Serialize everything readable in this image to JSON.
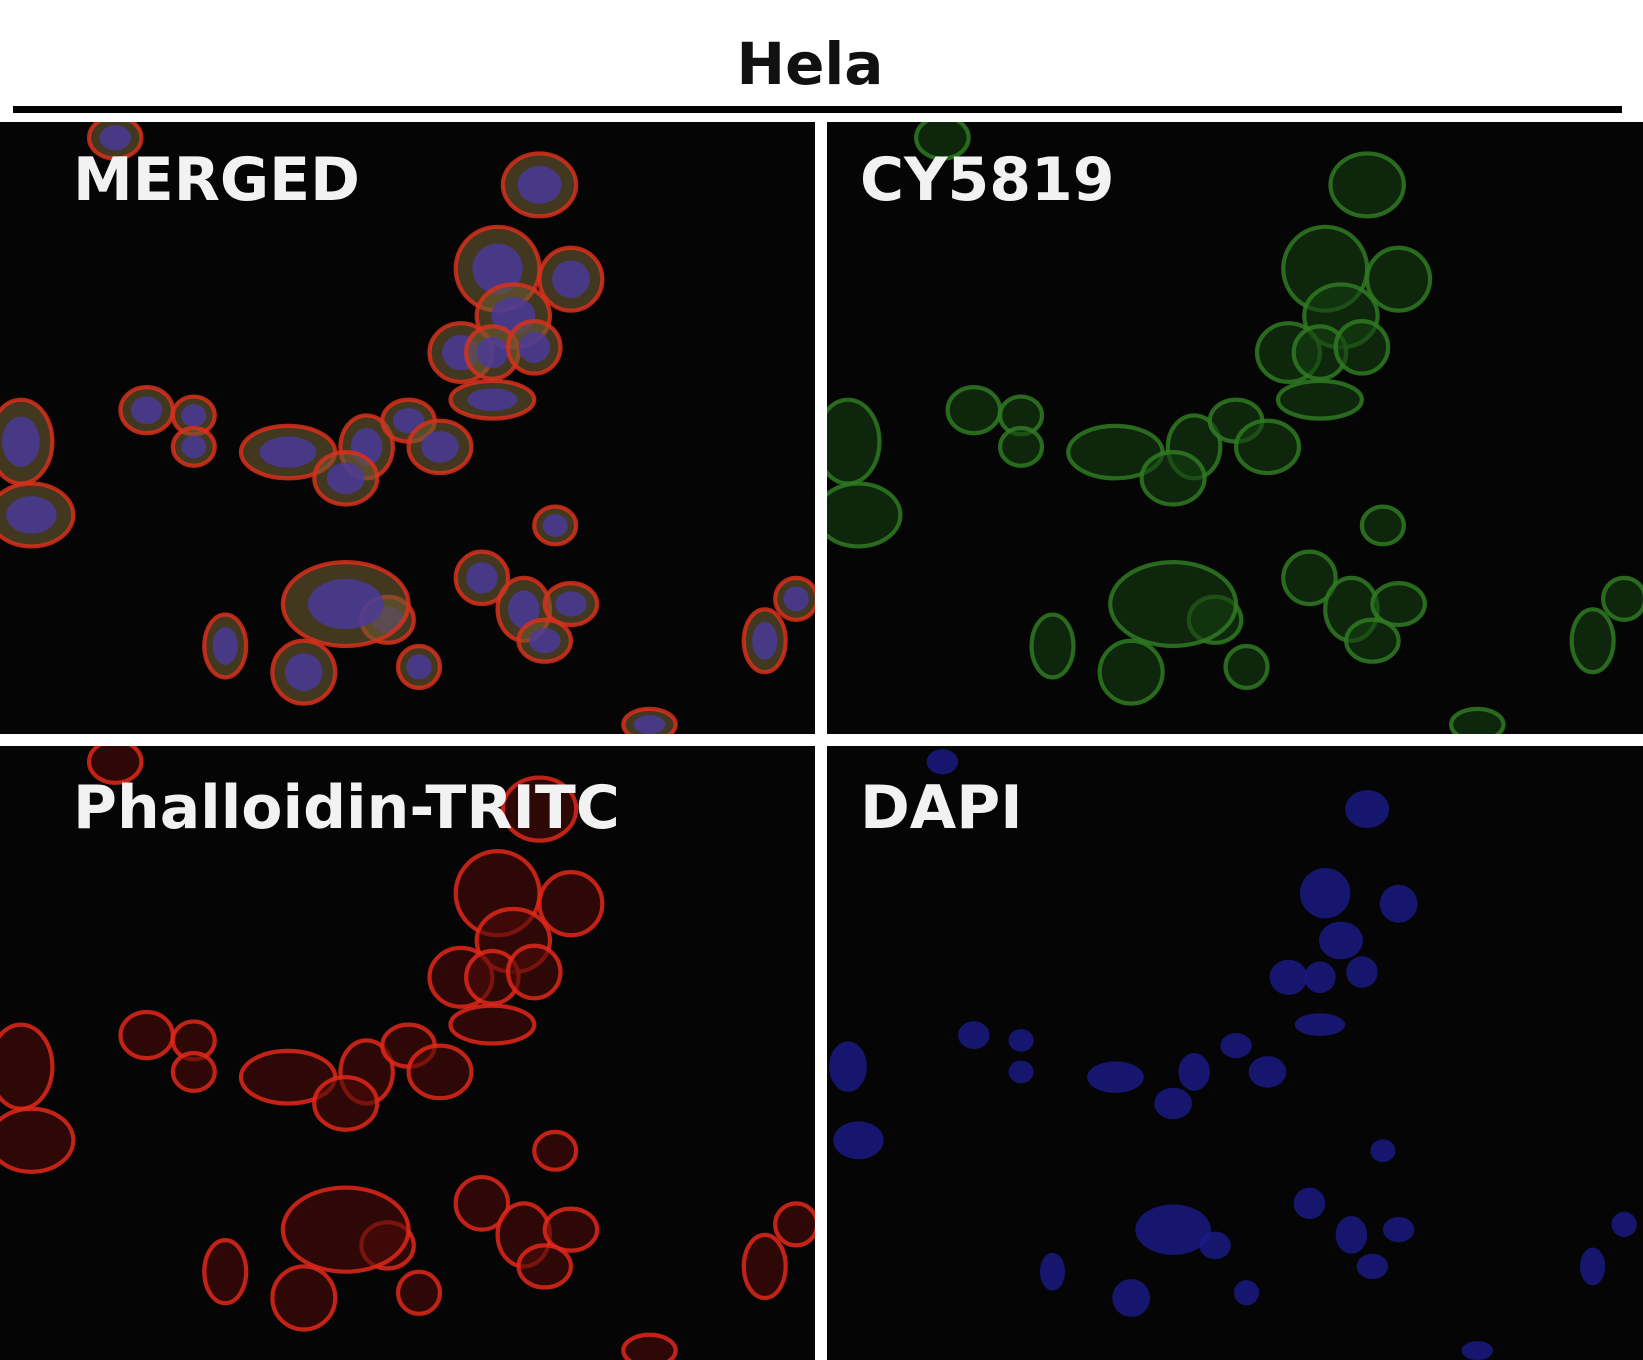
{
  "figure": {
    "title": "Hela",
    "panels": [
      {
        "label": "MERGED",
        "channel": "merged",
        "colors": {
          "membrane": "#d8301c",
          "nucleus": "#4a3aa0",
          "cytoplasm": "#6a5a30"
        }
      },
      {
        "label": "CY5819",
        "channel": "green",
        "colors": {
          "membrane": "#2f7a22",
          "cytoplasm": "#143d10"
        }
      },
      {
        "label": "Phalloidin-TRITC",
        "channel": "red",
        "colors": {
          "membrane": "#e0281a",
          "cytoplasm": "#4a0a06"
        }
      },
      {
        "label": "DAPI",
        "channel": "blue",
        "colors": {
          "nucleus": "#1a1a8a"
        }
      }
    ]
  }
}
